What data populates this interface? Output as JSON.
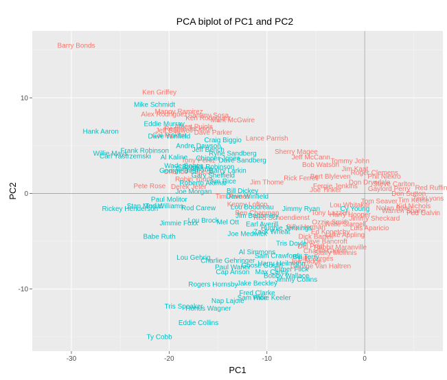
{
  "chart_data": {
    "type": "scatter",
    "title": "PCA biplot of PC1 and PC2",
    "xlabel": "PC1",
    "ylabel": "PC2",
    "xlim": [
      -34,
      8
    ],
    "ylim": [
      -16.5,
      17
    ],
    "xticks": [
      -30,
      -20,
      -10,
      0
    ],
    "yticks": [
      -10,
      0,
      10
    ],
    "grid": true,
    "reference_lines": {
      "x": 0,
      "y": 0
    },
    "colors": {
      "panel": "#ebebeb",
      "grid_major": "#ffffff",
      "grid_minor": "#f5f5f5",
      "reference": "#8c8c8c",
      "group_a": "#f8766d",
      "group_b": "#00bfc4"
    },
    "series": [
      {
        "values": [
          {
            "label": "Barry Bonds",
            "x": -29.5,
            "y": 15.5
          },
          {
            "label": "Ken Griffey",
            "x": -21.0,
            "y": 10.6
          },
          {
            "label": "Manny Ramirez",
            "x": -19.0,
            "y": 8.6
          },
          {
            "label": "Sammy Sosa",
            "x": -16.0,
            "y": 8.2
          },
          {
            "label": "Alex Rodriguez",
            "x": -20.5,
            "y": 8.3
          },
          {
            "label": "Mark McGwire",
            "x": -13.5,
            "y": 7.7
          },
          {
            "label": "Ken Rodriguez",
            "x": -16.0,
            "y": 7.9
          },
          {
            "label": "Albert Pujols",
            "x": -17.5,
            "y": 7.0
          },
          {
            "label": "Jeff Bagwell",
            "x": -19.5,
            "y": 6.6
          },
          {
            "label": "Reggie Jackson",
            "x": -18.0,
            "y": 6.8
          },
          {
            "label": "Pete Rose",
            "x": -22.0,
            "y": 0.8
          },
          {
            "label": "Derek Jeter",
            "x": -18.0,
            "y": 0.7
          },
          {
            "label": "Tim Raines",
            "x": -13.5,
            "y": -0.3
          },
          {
            "label": "Kenny Lofton",
            "x": -12.0,
            "y": -1.1
          },
          {
            "label": "Ben Chapman",
            "x": -11.0,
            "y": -2.0
          },
          {
            "label": "Cal Ripken",
            "x": -20.0,
            "y": 6.1
          },
          {
            "label": "Dave Parker",
            "x": -15.5,
            "y": 6.4
          },
          {
            "label": "Tony Perez",
            "x": -17.0,
            "y": 3.5
          },
          {
            "label": "Orlando Cepeda",
            "x": -18.0,
            "y": 2.3
          },
          {
            "label": "Robin Yount",
            "x": -17.5,
            "y": 1.5
          },
          {
            "label": "Lance Parrish",
            "x": -10.0,
            "y": 5.8
          },
          {
            "label": "Sherry Magee",
            "x": -7.0,
            "y": 4.4
          },
          {
            "label": "Jeff McCann",
            "x": -5.5,
            "y": 3.8
          },
          {
            "label": "Bob Watson",
            "x": -4.5,
            "y": 3.0
          },
          {
            "label": "Rick Ferrell",
            "x": -6.5,
            "y": 1.6
          },
          {
            "label": "Joe Tinker",
            "x": -4.0,
            "y": 0.4
          },
          {
            "label": "Jim Thome",
            "x": -10.0,
            "y": 1.2
          },
          {
            "label": "Red Schoendienst",
            "x": -8.5,
            "y": -2.5
          },
          {
            "label": "Billy Herman",
            "x": -6.0,
            "y": -3.5
          },
          {
            "label": "Dick Bartell",
            "x": -5.0,
            "y": -4.5
          },
          {
            "label": "Del Pratt",
            "x": -5.5,
            "y": -5.5
          },
          {
            "label": "Charlie Grimm",
            "x": -4.0,
            "y": -6.0
          },
          {
            "label": "Billy Jurges",
            "x": -5.0,
            "y": -6.8
          },
          {
            "label": "Joe Judge",
            "x": -6.0,
            "y": -7.1
          },
          {
            "label": "George Van Haltren",
            "x": -4.5,
            "y": -7.6
          },
          {
            "label": "Dave Bancroft",
            "x": -4.0,
            "y": -5.0
          },
          {
            "label": "Ed Konetchy",
            "x": -3.5,
            "y": -4.0
          },
          {
            "label": "Stuffy McInnis",
            "x": -3.0,
            "y": -6.2
          },
          {
            "label": "Ozzie Smith",
            "x": -3.5,
            "y": -3.0
          },
          {
            "label": "Tony Lazzeri",
            "x": -3.5,
            "y": -2.0
          },
          {
            "label": "Rabbit Maranville",
            "x": -2.5,
            "y": -5.6
          },
          {
            "label": "Luke Appling",
            "x": -2.0,
            "y": -4.3
          },
          {
            "label": "Willie Stargell",
            "x": -2.0,
            "y": -3.2
          },
          {
            "label": "Harry Hooper",
            "x": -1.5,
            "y": -2.2
          },
          {
            "label": "Lou Whitaker",
            "x": -1.5,
            "y": -1.2
          },
          {
            "label": "Jimmy Sheckard",
            "x": 1.0,
            "y": -2.6
          },
          {
            "label": "Luis Aparicio",
            "x": 0.5,
            "y": -3.6
          },
          {
            "label": "Tom Seaver",
            "x": 1.5,
            "y": -0.8
          },
          {
            "label": "Nolan Ryan",
            "x": 3.0,
            "y": -1.5
          },
          {
            "label": "Warren Spahn",
            "x": 4.0,
            "y": -1.8
          },
          {
            "label": "Kid Nichols",
            "x": 5.0,
            "y": -1.3
          },
          {
            "label": "Pud Galvin",
            "x": 6.0,
            "y": -2.0
          },
          {
            "label": "Tim Keefe",
            "x": 5.0,
            "y": -0.7
          },
          {
            "label": "Don Sutton",
            "x": 4.5,
            "y": 0.0
          },
          {
            "label": "Gaylord Perry",
            "x": 2.5,
            "y": 0.5
          },
          {
            "label": "Steve Carlton",
            "x": 3.0,
            "y": 1.0
          },
          {
            "label": "Phil Niekro",
            "x": 2.0,
            "y": 1.8
          },
          {
            "label": "Don Drysdale",
            "x": 0.5,
            "y": 1.2
          },
          {
            "label": "Roger Clemens",
            "x": 1.0,
            "y": 2.2
          },
          {
            "label": "Jim Kaat",
            "x": -1.0,
            "y": 2.6
          },
          {
            "label": "Tommy John",
            "x": -1.5,
            "y": 3.4
          },
          {
            "label": "Bert Blyleven",
            "x": -3.5,
            "y": 1.8
          },
          {
            "label": "Fergie Jenkins",
            "x": -3.0,
            "y": 0.8
          },
          {
            "label": "Ted Lyons",
            "x": 6.5,
            "y": -0.5
          },
          {
            "label": "Red Ruffing",
            "x": 7.0,
            "y": 0.6
          }
        ]
      },
      {
        "values": [
          {
            "label": "Mike Schmidt",
            "x": -21.5,
            "y": 9.3
          },
          {
            "label": "Eddie Murray",
            "x": -20.5,
            "y": 7.3
          },
          {
            "label": "Hank Aaron",
            "x": -27.0,
            "y": 6.5
          },
          {
            "label": "Dave Winfield",
            "x": -20.0,
            "y": 6.0
          },
          {
            "label": "Frank Robinson",
            "x": -22.5,
            "y": 4.5
          },
          {
            "label": "Willie Mays",
            "x": -26.0,
            "y": 4.2
          },
          {
            "label": "Carl Yastrzemski",
            "x": -24.5,
            "y": 3.9
          },
          {
            "label": "Al Kaline",
            "x": -19.5,
            "y": 3.8
          },
          {
            "label": "Wade Boggs",
            "x": -18.5,
            "y": 2.9
          },
          {
            "label": "George Brett",
            "x": -19.0,
            "y": 2.4
          },
          {
            "label": "Tony Gwynn",
            "x": -17.5,
            "y": 2.6
          },
          {
            "label": "Rod Carew",
            "x": -17.0,
            "y": -1.5
          },
          {
            "label": "Paul Molitor",
            "x": -20.0,
            "y": -0.6
          },
          {
            "label": "Joe Morgan",
            "x": -17.5,
            "y": 0.2
          },
          {
            "label": "Roberto Alomar",
            "x": -16.5,
            "y": 1.1
          },
          {
            "label": "Stan Musial",
            "x": -22.5,
            "y": -1.3
          },
          {
            "label": "Ted Williams",
            "x": -20.5,
            "y": -1.3
          },
          {
            "label": "Rickey Henderson",
            "x": -24.0,
            "y": -1.6
          },
          {
            "label": "Jimmie Foxx",
            "x": -19.0,
            "y": -3.1
          },
          {
            "label": "Lou Brock",
            "x": -16.5,
            "y": -2.8
          },
          {
            "label": "Babe Ruth",
            "x": -21.0,
            "y": -4.5
          },
          {
            "label": "Joe Medwick",
            "x": -12.0,
            "y": -4.2
          },
          {
            "label": "Mel Ott",
            "x": -14.0,
            "y": -3.0
          },
          {
            "label": "Lou Gehrig",
            "x": -17.5,
            "y": -6.7
          },
          {
            "label": "Charlie Gehringer",
            "x": -14.0,
            "y": -7.0
          },
          {
            "label": "Paul Waner",
            "x": -13.5,
            "y": -7.7
          },
          {
            "label": "Cap Anson",
            "x": -13.5,
            "y": -8.2
          },
          {
            "label": "Rogers Hornsby",
            "x": -15.5,
            "y": -9.5
          },
          {
            "label": "Jake Beckley",
            "x": -11.0,
            "y": -9.4
          },
          {
            "label": "Fred Clarke",
            "x": -11.0,
            "y": -10.4
          },
          {
            "label": "Sam Rice",
            "x": -11.5,
            "y": -10.9
          },
          {
            "label": "Willie Keeler",
            "x": -9.5,
            "y": -10.9
          },
          {
            "label": "Nap Lajoie",
            "x": -14.0,
            "y": -11.2
          },
          {
            "label": "Tris Speaker",
            "x": -18.5,
            "y": -11.8
          },
          {
            "label": "Honus Wagner",
            "x": -16.0,
            "y": -12.0
          },
          {
            "label": "Eddie Collins",
            "x": -17.0,
            "y": -13.5
          },
          {
            "label": "Ty Cobb",
            "x": -21.0,
            "y": -15.0
          },
          {
            "label": "Ryne Sandberg",
            "x": -13.5,
            "y": 4.2
          },
          {
            "label": "Dave Sandberg",
            "x": -12.5,
            "y": 3.5
          },
          {
            "label": "Andre Dawson",
            "x": -17.0,
            "y": 5.0
          },
          {
            "label": "Jeff Bench",
            "x": -16.0,
            "y": 4.6
          },
          {
            "label": "Craig Biggio",
            "x": -14.5,
            "y": 5.6
          },
          {
            "label": "Chipper Jones",
            "x": -15.0,
            "y": 3.7
          },
          {
            "label": "Brooks Robinson",
            "x": -16.0,
            "y": 2.8
          },
          {
            "label": "Barry Larkin",
            "x": -14.0,
            "y": 2.4
          },
          {
            "label": "Gary Sheffield",
            "x": -15.5,
            "y": 1.9
          },
          {
            "label": "Jim Rice",
            "x": -14.5,
            "y": 1.3
          },
          {
            "label": "Bill Dickey",
            "x": -12.5,
            "y": 0.3
          },
          {
            "label": "Dave Winfield",
            "x": -12.0,
            "y": -0.3
          },
          {
            "label": "Lou Boudreau",
            "x": -11.5,
            "y": -1.4
          },
          {
            "label": "Jim Bottomley",
            "x": -11.0,
            "y": -2.3
          },
          {
            "label": "Earl Averill",
            "x": -10.5,
            "y": -3.2
          },
          {
            "label": "Zack Wheat",
            "x": -9.5,
            "y": -4.0
          },
          {
            "label": "Al Simmons",
            "x": -11.0,
            "y": -6.1
          },
          {
            "label": "Sam Crawford",
            "x": -9.0,
            "y": -6.5
          },
          {
            "label": "Harry Heilmann",
            "x": -8.5,
            "y": -7.3
          },
          {
            "label": "Goose Goslin",
            "x": -10.5,
            "y": -7.5
          },
          {
            "label": "Max Carey",
            "x": -9.5,
            "y": -8.2
          },
          {
            "label": "Jimmy Collins",
            "x": -7.0,
            "y": -9.0
          },
          {
            "label": "Bobby Wallace",
            "x": -8.0,
            "y": -8.6
          },
          {
            "label": "Elmer Flick",
            "x": -7.5,
            "y": -7.9
          },
          {
            "label": "Bill Terry",
            "x": -6.0,
            "y": -6.6
          },
          {
            "label": "Tris Doyle",
            "x": -7.5,
            "y": -5.2
          },
          {
            "label": "Hughie Jennings",
            "x": -8.0,
            "y": -3.6
          },
          {
            "label": "Jimmy Ryan",
            "x": -6.5,
            "y": -1.6
          },
          {
            "label": "Cy Young",
            "x": -1.0,
            "y": -1.6
          }
        ]
      }
    ]
  }
}
